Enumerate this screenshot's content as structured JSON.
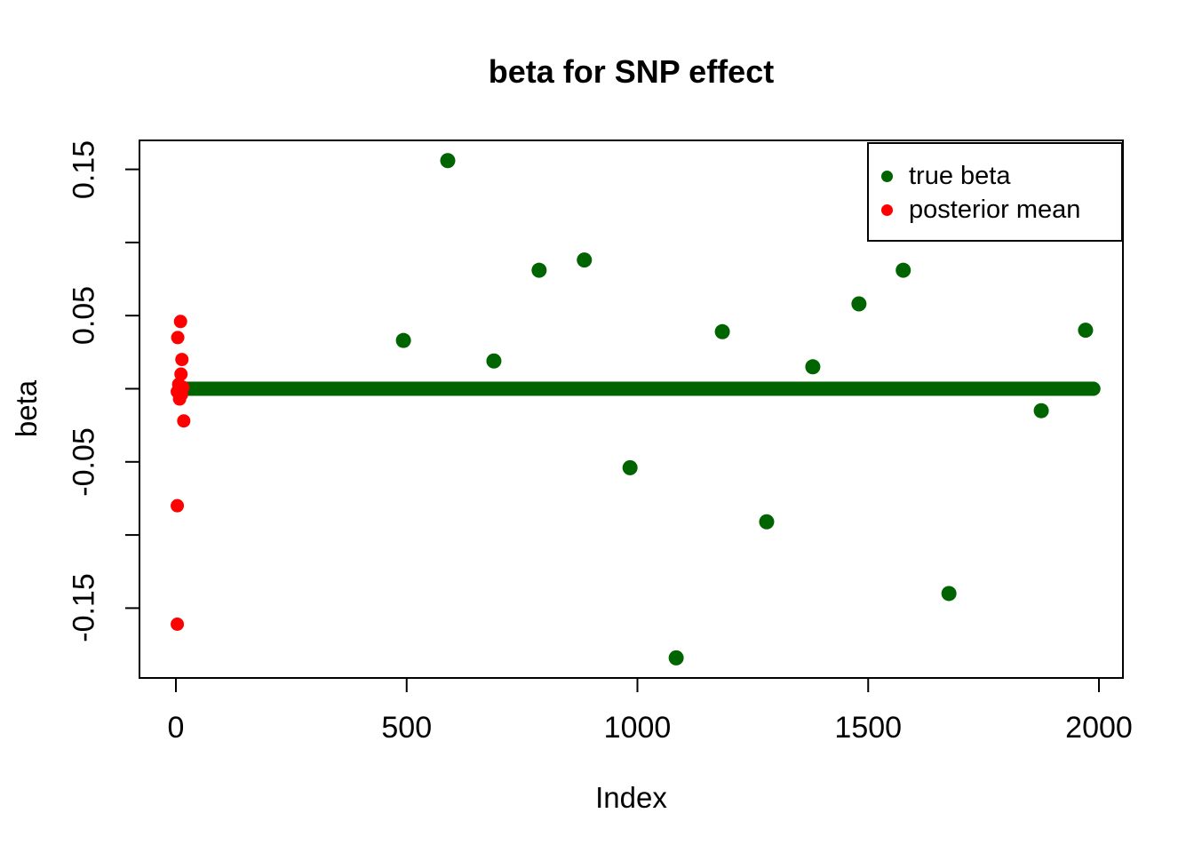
{
  "chart_data": {
    "type": "scatter",
    "title": "beta for SNP effect",
    "xlabel": "Index",
    "ylabel": "beta",
    "xlim": [
      -80,
      2050
    ],
    "ylim": [
      -0.198,
      0.17
    ],
    "grid": false,
    "x_ticks": [
      {
        "value": 0,
        "label": "0"
      },
      {
        "value": 500,
        "label": "500"
      },
      {
        "value": 1000,
        "label": "1000"
      },
      {
        "value": 1500,
        "label": "1500"
      },
      {
        "value": 2000,
        "label": "2000"
      }
    ],
    "y_ticks": [
      {
        "value": 0.15,
        "label": "0.15"
      },
      {
        "value": 0.1,
        "label": ""
      },
      {
        "value": 0.05,
        "label": "0.05"
      },
      {
        "value": 0.0,
        "label": ""
      },
      {
        "value": -0.05,
        "label": "-0.05"
      },
      {
        "value": -0.1,
        "label": ""
      },
      {
        "value": -0.15,
        "label": "-0.15"
      }
    ],
    "legend": {
      "position": "topright",
      "entries": [
        {
          "label": "true beta",
          "color": "#006400"
        },
        {
          "label": "posterior mean",
          "color": "#ff0000"
        }
      ]
    },
    "series": [
      {
        "name": "true beta",
        "color": "#006400",
        "marker": "filled-circle",
        "zero_line": {
          "y": 0,
          "x_start": 20,
          "x_end": 1988
        },
        "points": [
          [
            493,
            0.033
          ],
          [
            589,
            0.156
          ],
          [
            689,
            0.019
          ],
          [
            787,
            0.081
          ],
          [
            885,
            0.088
          ],
          [
            984,
            -0.054
          ],
          [
            1084,
            -0.184
          ],
          [
            1184,
            0.039
          ],
          [
            1280,
            -0.091
          ],
          [
            1380,
            0.015
          ],
          [
            1480,
            0.058
          ],
          [
            1576,
            0.081
          ],
          [
            1675,
            -0.14
          ],
          [
            1875,
            -0.015
          ],
          [
            1971,
            0.04
          ]
        ]
      },
      {
        "name": "posterior mean",
        "color": "#ff0000",
        "marker": "filled-circle",
        "points": [
          [
            10,
            0.046
          ],
          [
            4,
            0.035
          ],
          [
            13,
            0.02
          ],
          [
            11,
            0.01
          ],
          [
            6,
            0.003
          ],
          [
            15,
            0.001
          ],
          [
            3,
            -0.002
          ],
          [
            12,
            -0.004
          ],
          [
            8,
            -0.007
          ],
          [
            17,
            -0.022
          ],
          [
            3,
            -0.08
          ],
          [
            3,
            -0.161
          ]
        ]
      }
    ]
  }
}
